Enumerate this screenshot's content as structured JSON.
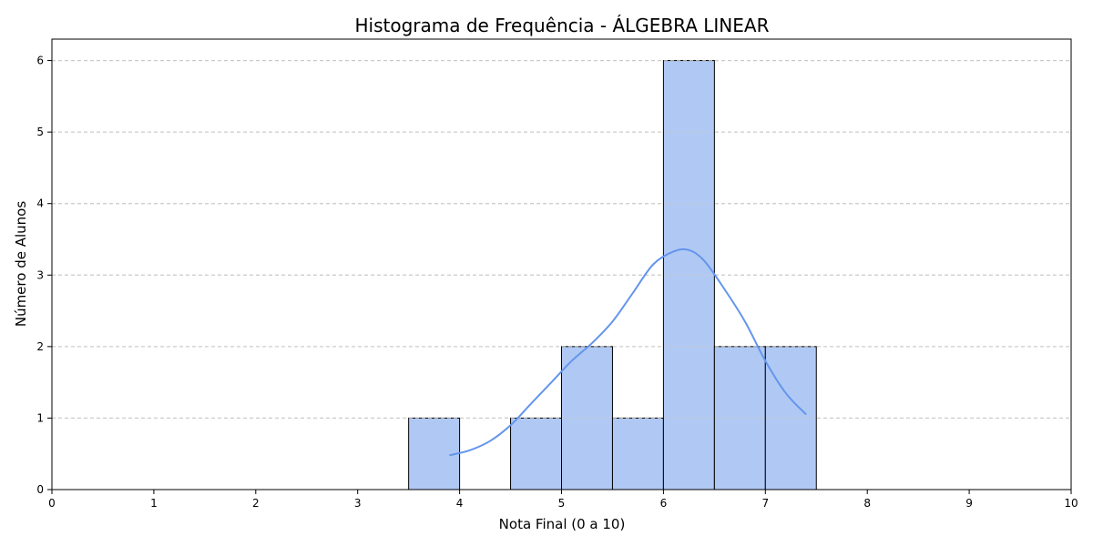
{
  "chart_data": {
    "type": "bar",
    "title": "Histograma de Frequência - ÁLGEBRA LINEAR",
    "xlabel": "Nota Final (0 a 10)",
    "ylabel": "Número de Alunos",
    "xlim": [
      0,
      10
    ],
    "ylim": [
      0,
      6.3
    ],
    "x_ticks": [
      "0",
      "1",
      "2",
      "3",
      "4",
      "5",
      "6",
      "7",
      "8",
      "9",
      "10"
    ],
    "y_ticks": [
      "0",
      "1",
      "2",
      "3",
      "4",
      "5",
      "6"
    ],
    "bin_edges": [
      3.5,
      4.0,
      4.5,
      5.0,
      5.5,
      6.0,
      6.5,
      7.0,
      7.5
    ],
    "counts": [
      1,
      0,
      1,
      2,
      1,
      6,
      2,
      2
    ],
    "kde": {
      "x": [
        3.9,
        4.1,
        4.3,
        4.5,
        4.7,
        4.9,
        5.1,
        5.3,
        5.5,
        5.7,
        5.9,
        6.1,
        6.25,
        6.4,
        6.6,
        6.8,
        7.0,
        7.2,
        7.4
      ],
      "y": [
        0.48,
        0.55,
        0.68,
        0.9,
        1.2,
        1.5,
        1.8,
        2.05,
        2.35,
        2.75,
        3.15,
        3.33,
        3.35,
        3.2,
        2.8,
        2.35,
        1.8,
        1.35,
        1.05
      ]
    },
    "grid": "y-dashed",
    "colors": {
      "bar_fill": "#b0c9f4",
      "bar_edge": "#000000",
      "kde_line": "#6495ed",
      "grid": "#c8c8c8"
    }
  }
}
